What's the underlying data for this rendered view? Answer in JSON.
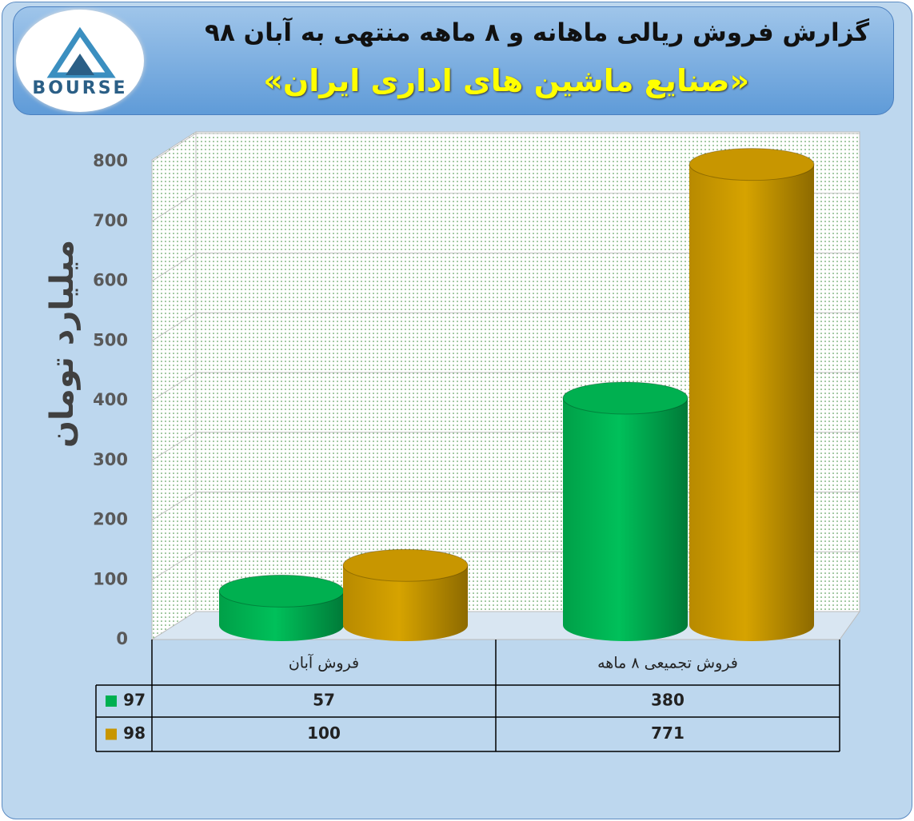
{
  "logo": {
    "text": "BOURSE"
  },
  "chart_data": {
    "type": "bar",
    "title": "گزارش فروش ریالی ماهانه و ۸ ماهه منتهی به آبان ۹۸",
    "subtitle": "«صنایع ماشین های اداری ایران»",
    "y_label": "میلیارد تومان",
    "categories": [
      "فروش آبان",
      "فروش تجمیعی ۸ ماهه"
    ],
    "series": [
      {
        "name": "97",
        "color": "#00b050",
        "values": [
          57,
          380
        ]
      },
      {
        "name": "98",
        "color": "#c89600",
        "values": [
          100,
          771
        ]
      }
    ],
    "ylim": [
      0,
      800
    ],
    "yticks": [
      0,
      100,
      200,
      300,
      400,
      500,
      600,
      700,
      800
    ],
    "grid": true
  }
}
